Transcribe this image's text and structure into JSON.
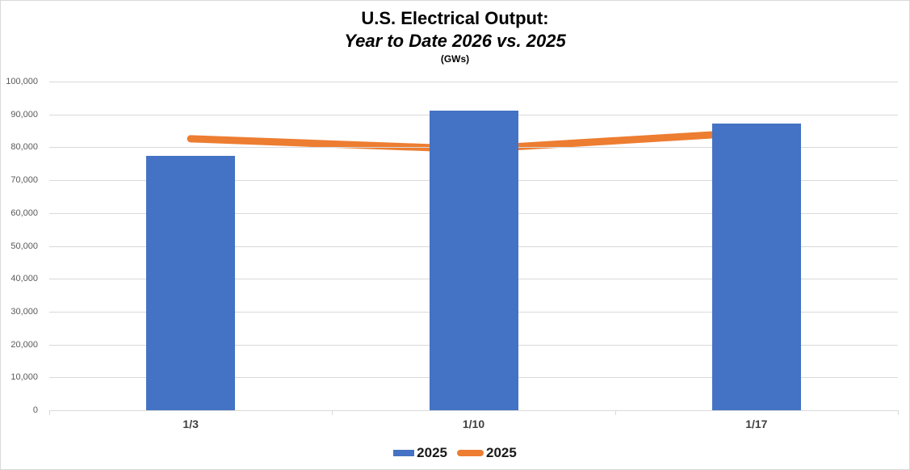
{
  "window": {
    "background": "#ffffff",
    "border_color": "#d9d9d9"
  },
  "chart_data": {
    "type": "bar+line combo",
    "title": "U.S. Electrical Output:",
    "subtitle": "Year to Date 2026 vs. 2025",
    "units_label": "(GWs)",
    "categories": [
      "1/3",
      "1/10",
      "1/17"
    ],
    "series": [
      {
        "name": "2025",
        "type": "bar",
        "color": "#4472C4",
        "values": [
          77400,
          91200,
          87300
        ]
      },
      {
        "name": "2025",
        "type": "line",
        "color": "#ED7D31",
        "values": [
          82600,
          79400,
          84600
        ]
      }
    ],
    "xlabel": "",
    "ylabel": "",
    "ylim": [
      0,
      100000
    ],
    "ytick_step": 10000,
    "ytick_labels": [
      "0",
      "10,000",
      "20,000",
      "30,000",
      "40,000",
      "50,000",
      "60,000",
      "70,000",
      "80,000",
      "90,000",
      "100,000"
    ],
    "grid": true,
    "gridline_color": "#d9d9d9",
    "axis_color": "#d9d9d9",
    "tick_label_color": "#595959",
    "category_label_color": "#404040",
    "legend_position": "bottom"
  }
}
